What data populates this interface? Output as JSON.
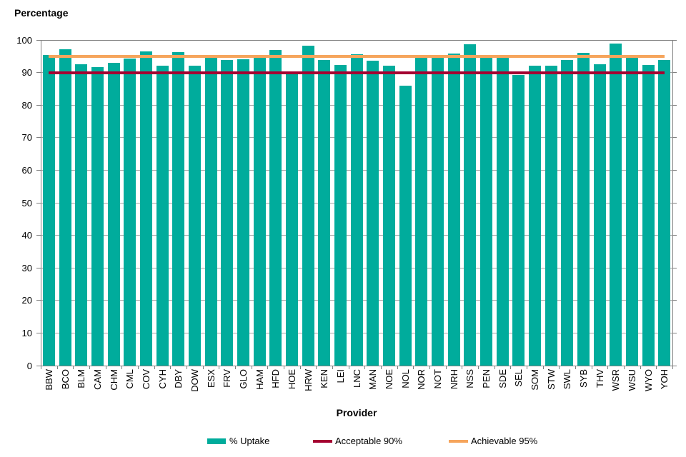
{
  "chart_data": {
    "type": "bar",
    "title": "Percentage",
    "xlabel": "Provider",
    "ylabel": "Percentage",
    "ylim": [
      0,
      100
    ],
    "yticks": [
      0,
      10,
      20,
      30,
      40,
      50,
      60,
      70,
      80,
      90,
      100
    ],
    "grid": true,
    "legend_position": "bottom",
    "categories": [
      "BBW",
      "BCO",
      "BLM",
      "CAM",
      "CHM",
      "CML",
      "COV",
      "CYH",
      "DBY",
      "DOW",
      "ESX",
      "FRV",
      "GLO",
      "HAM",
      "HFD",
      "HOE",
      "HRW",
      "KEN",
      "LEI",
      "LNC",
      "MAN",
      "NOE",
      "NOL",
      "NOR",
      "NOT",
      "NRH",
      "NSS",
      "PEN",
      "SDE",
      "SEL",
      "SOM",
      "STW",
      "SWL",
      "SYB",
      "THV",
      "WSR",
      "WSU",
      "WYO",
      "YOH"
    ],
    "series": [
      {
        "name": "% Uptake",
        "kind": "bar",
        "color": "#00ac9c",
        "values": [
          95.5,
          97.2,
          92.5,
          91.7,
          93.0,
          94.3,
          96.5,
          92.2,
          96.2,
          92.0,
          94.5,
          93.8,
          94.1,
          94.5,
          97.0,
          89.6,
          98.2,
          93.9,
          92.3,
          95.6,
          93.7,
          92.2,
          86.0,
          94.6,
          94.6,
          95.9,
          98.7,
          94.6,
          94.6,
          89.3,
          92.2,
          92.2,
          93.9,
          96.0,
          92.6,
          98.8,
          94.5,
          92.3,
          93.8
        ]
      },
      {
        "name": "Acceptable 90%",
        "kind": "line",
        "color": "#a40031",
        "value": 90
      },
      {
        "name": "Achievable 95%",
        "kind": "line",
        "color": "#f6a55c",
        "value": 95
      }
    ]
  },
  "colors": {
    "bar": "#00ac9c",
    "acceptable_line": "#a40031",
    "achievable_line": "#f6a55c",
    "gridline": "#a6a6a6",
    "axis": "#808080",
    "text": "#000000",
    "background": "#ffffff"
  }
}
